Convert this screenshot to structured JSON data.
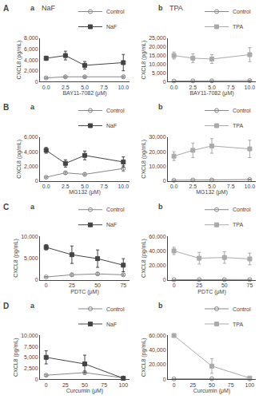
{
  "chart_data": [
    {
      "type": "line",
      "title": "NaF",
      "annotations": [
        "A",
        "a"
      ],
      "xlabel": "BAY11-7082 (μM)",
      "ylabel": "CXCL8 (pg/mL)",
      "x": [
        0,
        2.5,
        5,
        10
      ],
      "series": [
        {
          "name": "Control",
          "color": "#888888",
          "marker": "circle-open",
          "values": [
            700,
            900,
            900,
            900
          ],
          "errors": [
            100,
            150,
            150,
            150
          ]
        },
        {
          "name": "NaF",
          "color": "#444444",
          "marker": "square",
          "values": [
            4300,
            4800,
            3000,
            3500
          ],
          "errors": [
            400,
            800,
            700,
            1500
          ]
        }
      ],
      "xlim": [
        -0.8,
        10.8
      ],
      "xticks": [
        {
          "value": 0,
          "label": "0.0"
        },
        2.5,
        {
          "value": 5,
          "label": "5.0"
        },
        7.5,
        {
          "value": 10,
          "label": "10.0"
        }
      ],
      "ylim": [
        0,
        8000
      ],
      "yticks": [
        0,
        {
          "value": 2000,
          "label": "2,000"
        },
        {
          "value": 4000,
          "label": "4,000"
        },
        {
          "value": 6000,
          "label": "6,000"
        },
        {
          "value": 8000,
          "label": "8,000"
        }
      ],
      "grid": false,
      "legend": "upper right"
    },
    {
      "type": "line",
      "title": "TPA",
      "annotations": [
        "b"
      ],
      "xlabel": "BAY11-7082 (μM)",
      "ylabel": "CXCL8 (pg/mL)",
      "x": [
        0,
        2.5,
        5,
        10
      ],
      "series": [
        {
          "name": "Control",
          "color": "#888888",
          "marker": "circle-open",
          "values": [
            400,
            500,
            500,
            600
          ],
          "errors": [
            80,
            100,
            100,
            150
          ]
        },
        {
          "name": "TPA",
          "color": "#aaaaaa",
          "marker": "square",
          "values": [
            15000,
            13500,
            13000,
            15500
          ],
          "errors": [
            2000,
            2500,
            2500,
            4000
          ]
        }
      ],
      "xlim": [
        -0.8,
        10.8
      ],
      "xticks": [
        {
          "value": 0,
          "label": "0.0"
        },
        2.5,
        {
          "value": 5,
          "label": "5.0"
        },
        7.5,
        {
          "value": 10,
          "label": "10.0"
        }
      ],
      "ylim": [
        0,
        25000
      ],
      "yticks": [
        0,
        {
          "value": 5000,
          "label": "5,000"
        },
        {
          "value": 10000,
          "label": "10,000"
        },
        {
          "value": 15000,
          "label": "15,000"
        },
        {
          "value": 20000,
          "label": "20,000"
        },
        {
          "value": 25000,
          "label": "25,000"
        }
      ],
      "grid": false,
      "legend": "upper right"
    },
    {
      "type": "line",
      "annotations": [
        "B",
        "a"
      ],
      "xlabel": "MG132 (μM)",
      "ylabel": "CXCL8 (pg/mL)",
      "x": [
        0,
        2.5,
        5,
        10
      ],
      "series": [
        {
          "name": "Control",
          "color": "#888888",
          "marker": "circle-open",
          "values": [
            500,
            1100,
            900,
            1700
          ],
          "errors": [
            100,
            200,
            200,
            400
          ]
        },
        {
          "name": "NaF",
          "color": "#444444",
          "marker": "square",
          "values": [
            4200,
            2400,
            3500,
            2600
          ],
          "errors": [
            400,
            500,
            600,
            700
          ]
        }
      ],
      "xlim": [
        -0.8,
        10.8
      ],
      "xticks": [
        {
          "value": 0,
          "label": "0.0"
        },
        2.5,
        {
          "value": 5,
          "label": "5.0"
        },
        7.5,
        {
          "value": 10,
          "label": "10.0"
        }
      ],
      "ylim": [
        0,
        6000
      ],
      "yticks": [
        0,
        {
          "value": 2000,
          "label": "2,000"
        },
        {
          "value": 4000,
          "label": "4,000"
        },
        {
          "value": 6000,
          "label": "6,000"
        }
      ],
      "grid": false,
      "legend": "upper right"
    },
    {
      "type": "line",
      "annotations": [
        "b"
      ],
      "xlabel": "MG132 (μM)",
      "ylabel": "CXCL8 (pg/mL)",
      "x": [
        0,
        2.5,
        5,
        10
      ],
      "series": [
        {
          "name": "Control",
          "color": "#888888",
          "marker": "circle-open",
          "values": [
            400,
            600,
            600,
            900
          ],
          "errors": [
            80,
            150,
            150,
            250
          ]
        },
        {
          "name": "TPA",
          "color": "#aaaaaa",
          "marker": "square",
          "values": [
            17000,
            21000,
            24000,
            22000
          ],
          "errors": [
            3000,
            5000,
            5000,
            6000
          ]
        }
      ],
      "xlim": [
        -0.8,
        10.8
      ],
      "xticks": [
        {
          "value": 0,
          "label": "0.0"
        },
        2.5,
        {
          "value": 5,
          "label": "5.0"
        },
        7.5,
        {
          "value": 10,
          "label": "10.0"
        }
      ],
      "ylim": [
        0,
        30000
      ],
      "yticks": [
        0,
        {
          "value": 10000,
          "label": "10,000"
        },
        {
          "value": 20000,
          "label": "20,000"
        },
        {
          "value": 30000,
          "label": "30,000"
        }
      ],
      "grid": false,
      "legend": "upper right"
    },
    {
      "type": "line",
      "annotations": [
        "C",
        "a"
      ],
      "xlabel": "PDTC (μM)",
      "ylabel": "CXCL8 (pg/mL)",
      "x": [
        0,
        25,
        50,
        75
      ],
      "series": [
        {
          "name": "Control",
          "color": "#888888",
          "marker": "circle-open",
          "values": [
            700,
            1200,
            1400,
            1200
          ],
          "errors": [
            100,
            350,
            350,
            250
          ]
        },
        {
          "name": "NaF",
          "color": "#444444",
          "marker": "square",
          "values": [
            7500,
            5800,
            4900,
            3400
          ],
          "errors": [
            600,
            2000,
            2000,
            1500
          ]
        }
      ],
      "xlim": [
        -6,
        81
      ],
      "xticks": [
        0,
        25,
        50,
        75
      ],
      "ylim": [
        0,
        10000
      ],
      "yticks": [
        0,
        {
          "value": 5000,
          "label": "5,000"
        },
        {
          "value": 10000,
          "label": "10,000"
        }
      ],
      "grid": false,
      "legend": "upper right"
    },
    {
      "type": "line",
      "annotations": [
        "b"
      ],
      "xlabel": "PDTC (μM)",
      "ylabel": "CXCL8 (pg/mL)",
      "x": [
        0,
        25,
        50,
        75
      ],
      "series": [
        {
          "name": "Control",
          "color": "#888888",
          "marker": "circle-open",
          "values": [
            400,
            600,
            600,
            600
          ],
          "errors": [
            80,
            150,
            150,
            150
          ]
        },
        {
          "name": "TPA",
          "color": "#aaaaaa",
          "marker": "square",
          "values": [
            40000,
            30000,
            31000,
            29000
          ],
          "errors": [
            5000,
            8000,
            8000,
            8000
          ]
        }
      ],
      "xlim": [
        -6,
        81
      ],
      "xticks": [
        0,
        25,
        50,
        75
      ],
      "ylim": [
        0,
        60000
      ],
      "yticks": [
        0,
        {
          "value": 20000,
          "label": "20,000"
        },
        {
          "value": 40000,
          "label": "40,000"
        },
        {
          "value": 60000,
          "label": "60,000"
        }
      ],
      "grid": false,
      "legend": "upper right"
    },
    {
      "type": "line",
      "annotations": [
        "D",
        "a"
      ],
      "xlabel": "Curcumin (μM)",
      "ylabel": "CXCL8 (pg/mL)",
      "x": [
        0,
        50,
        100
      ],
      "series": [
        {
          "name": "Control",
          "color": "#888888",
          "marker": "circle-open",
          "values": [
            900,
            1500,
            300
          ],
          "errors": [
            200,
            400,
            150
          ]
        },
        {
          "name": "NaF",
          "color": "#444444",
          "marker": "square",
          "values": [
            5000,
            3500,
            200
          ],
          "errors": [
            1500,
            2000,
            200
          ]
        }
      ],
      "xlim": [
        -8,
        108
      ],
      "xticks": [
        0,
        25,
        50,
        75,
        100
      ],
      "ylim": [
        0,
        10000
      ],
      "yticks": [
        0,
        {
          "value": 2500,
          "label": "2,500"
        },
        {
          "value": 5000,
          "label": "5,000"
        },
        {
          "value": 7500,
          "label": "7,500"
        },
        {
          "value": 10000,
          "label": "10,000"
        }
      ],
      "grid": false,
      "legend": "upper right"
    },
    {
      "type": "line",
      "annotations": [
        "b"
      ],
      "xlabel": "Curcumin (μM)",
      "ylabel": "CXCL8 (pg/mL)",
      "x": [
        0,
        50,
        100
      ],
      "series": [
        {
          "name": "Control",
          "color": "#888888",
          "marker": "circle-open",
          "values": [
            400,
            600,
            400
          ],
          "errors": [
            80,
            150,
            100
          ]
        },
        {
          "name": "TPA",
          "color": "#aaaaaa",
          "marker": "square",
          "values": [
            60000,
            18000,
            1500
          ],
          "errors": [
            0,
            10000,
            1000
          ]
        }
      ],
      "xlim": [
        -8,
        108
      ],
      "xticks": [
        0,
        25,
        50,
        75,
        100
      ],
      "ylim": [
        0,
        60000
      ],
      "yticks": [
        0,
        {
          "value": 20000,
          "label": "20,000"
        },
        {
          "value": 40000,
          "label": "40,000"
        },
        {
          "value": 60000,
          "label": "60,000"
        }
      ],
      "grid": false,
      "legend": "upper right"
    }
  ]
}
